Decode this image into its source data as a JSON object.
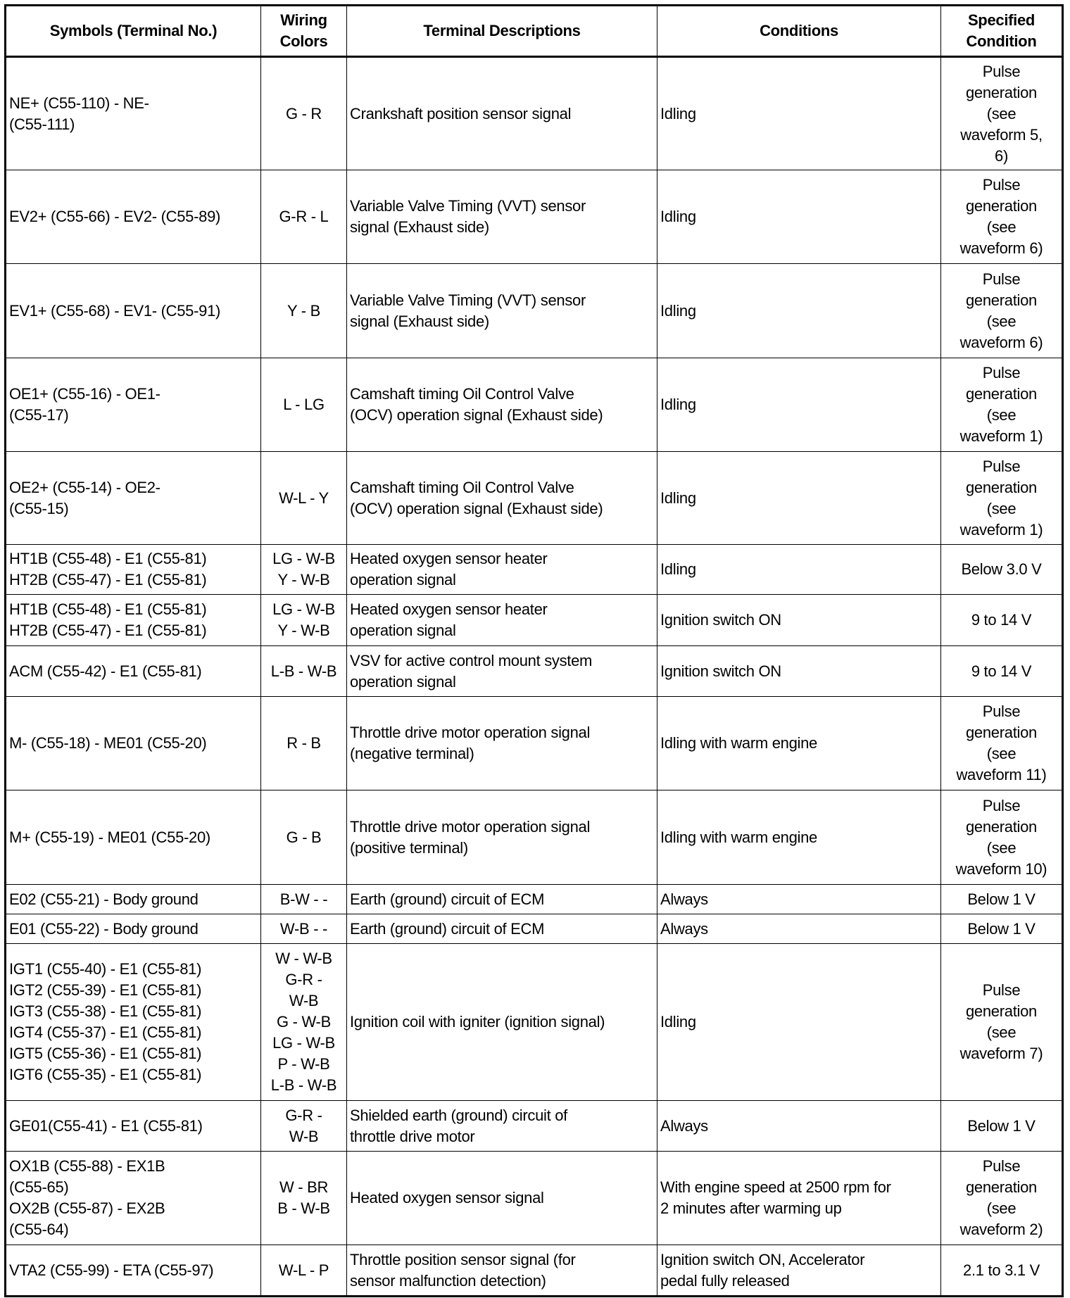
{
  "headers": [
    "Symbols (Terminal No.)",
    "Wiring\nColors",
    "Terminal Descriptions",
    "Conditions",
    "Specified\nCondition"
  ],
  "rows": [
    {
      "symbols": "NE+ (C55-110) - NE-\n(C55-111)",
      "colors": "G - R",
      "description": "Crankshaft position sensor signal",
      "conditions": "Idling",
      "specified": "Pulse\ngeneration\n(see\nwaveform 5,\n6)"
    },
    {
      "symbols": "EV2+ (C55-66) - EV2- (C55-89)",
      "colors": "G-R - L",
      "description": "Variable Valve Timing (VVT) sensor\nsignal (Exhaust side)",
      "conditions": "Idling",
      "specified": "Pulse\ngeneration\n(see\nwaveform 6)"
    },
    {
      "symbols": "EV1+ (C55-68) - EV1- (C55-91)",
      "colors": "Y - B",
      "description": "Variable Valve Timing (VVT) sensor\nsignal (Exhaust side)",
      "conditions": "Idling",
      "specified": "Pulse\ngeneration\n(see\nwaveform 6)"
    },
    {
      "symbols": "OE1+ (C55-16) - OE1-\n(C55-17)",
      "colors": "L - LG",
      "description": "Camshaft timing Oil Control Valve\n(OCV) operation signal (Exhaust side)",
      "conditions": "Idling",
      "specified": "Pulse\ngeneration\n(see\nwaveform 1)"
    },
    {
      "symbols": "OE2+ (C55-14) - OE2-\n(C55-15)",
      "colors": "W-L - Y",
      "description": "Camshaft timing Oil Control Valve\n(OCV) operation signal (Exhaust side)",
      "conditions": "Idling",
      "specified": "Pulse\ngeneration\n(see\nwaveform 1)"
    },
    {
      "symbols": "HT1B (C55-48) - E1 (C55-81)\nHT2B (C55-47) - E1 (C55-81)",
      "colors": "LG - W-B\nY - W-B",
      "description": "Heated oxygen sensor heater\noperation signal",
      "conditions": "Idling",
      "specified": "Below 3.0 V"
    },
    {
      "symbols": "HT1B (C55-48) - E1 (C55-81)\nHT2B (C55-47) - E1 (C55-81)",
      "colors": "LG - W-B\nY - W-B",
      "description": "Heated oxygen sensor heater\noperation signal",
      "conditions": "Ignition switch ON",
      "specified": "9 to 14 V"
    },
    {
      "symbols": "ACM (C55-42) - E1 (C55-81)",
      "colors": "L-B - W-B",
      "description": "VSV for active control mount system\noperation signal",
      "conditions": "Ignition switch ON",
      "specified": "9 to 14 V"
    },
    {
      "symbols": "M- (C55-18) - ME01 (C55-20)",
      "colors": "R - B",
      "description": "Throttle drive motor operation signal\n(negative terminal)",
      "conditions": "Idling with warm engine",
      "specified": "Pulse\ngeneration\n(see\nwaveform 11)"
    },
    {
      "symbols": "M+ (C55-19) - ME01 (C55-20)",
      "colors": "G - B",
      "description": "Throttle drive motor operation signal\n(positive terminal)",
      "conditions": "Idling with warm engine",
      "specified": "Pulse\ngeneration\n(see\nwaveform 10)"
    },
    {
      "symbols": "E02 (C55-21) - Body ground",
      "colors": "B-W - -",
      "description": "Earth (ground) circuit of ECM",
      "conditions": "Always",
      "specified": "Below 1 V"
    },
    {
      "symbols": "E01 (C55-22) - Body ground",
      "colors": "W-B - -",
      "description": "Earth (ground) circuit of ECM",
      "conditions": "Always",
      "specified": "Below 1 V"
    },
    {
      "symbols": "IGT1 (C55-40) - E1 (C55-81)\nIGT2 (C55-39) - E1 (C55-81)\nIGT3 (C55-38) - E1 (C55-81)\nIGT4 (C55-37) - E1 (C55-81)\nIGT5 (C55-36) - E1 (C55-81)\nIGT6 (C55-35) - E1 (C55-81)",
      "colors": "W - W-B\nG-R -\nW-B\nG - W-B\nLG - W-B\nP - W-B\nL-B - W-B",
      "description": "Ignition coil with igniter (ignition signal)",
      "conditions": "Idling",
      "specified": "Pulse\ngeneration\n(see\nwaveform 7)"
    },
    {
      "symbols": "GE01(C55-41) - E1 (C55-81)",
      "colors": "G-R -\nW-B",
      "description": "Shielded earth (ground) circuit of\nthrottle drive motor",
      "conditions": "Always",
      "specified": "Below 1 V"
    },
    {
      "symbols": "OX1B (C55-88) - EX1B\n(C55-65)\nOX2B (C55-87) - EX2B\n(C55-64)",
      "colors": "W - BR\nB - W-B",
      "description": "Heated oxygen sensor signal",
      "conditions": "With engine speed at 2500 rpm for\n2 minutes after warming up",
      "specified": "Pulse\ngeneration\n(see\nwaveform 2)"
    },
    {
      "symbols": "VTA2 (C55-99) - ETA (C55-97)",
      "colors": "W-L - P",
      "description": "Throttle position sensor signal (for\nsensor malfunction detection)",
      "conditions": "Ignition switch ON, Accelerator\npedal fully released",
      "specified": "2.1 to 3.1 V"
    }
  ]
}
